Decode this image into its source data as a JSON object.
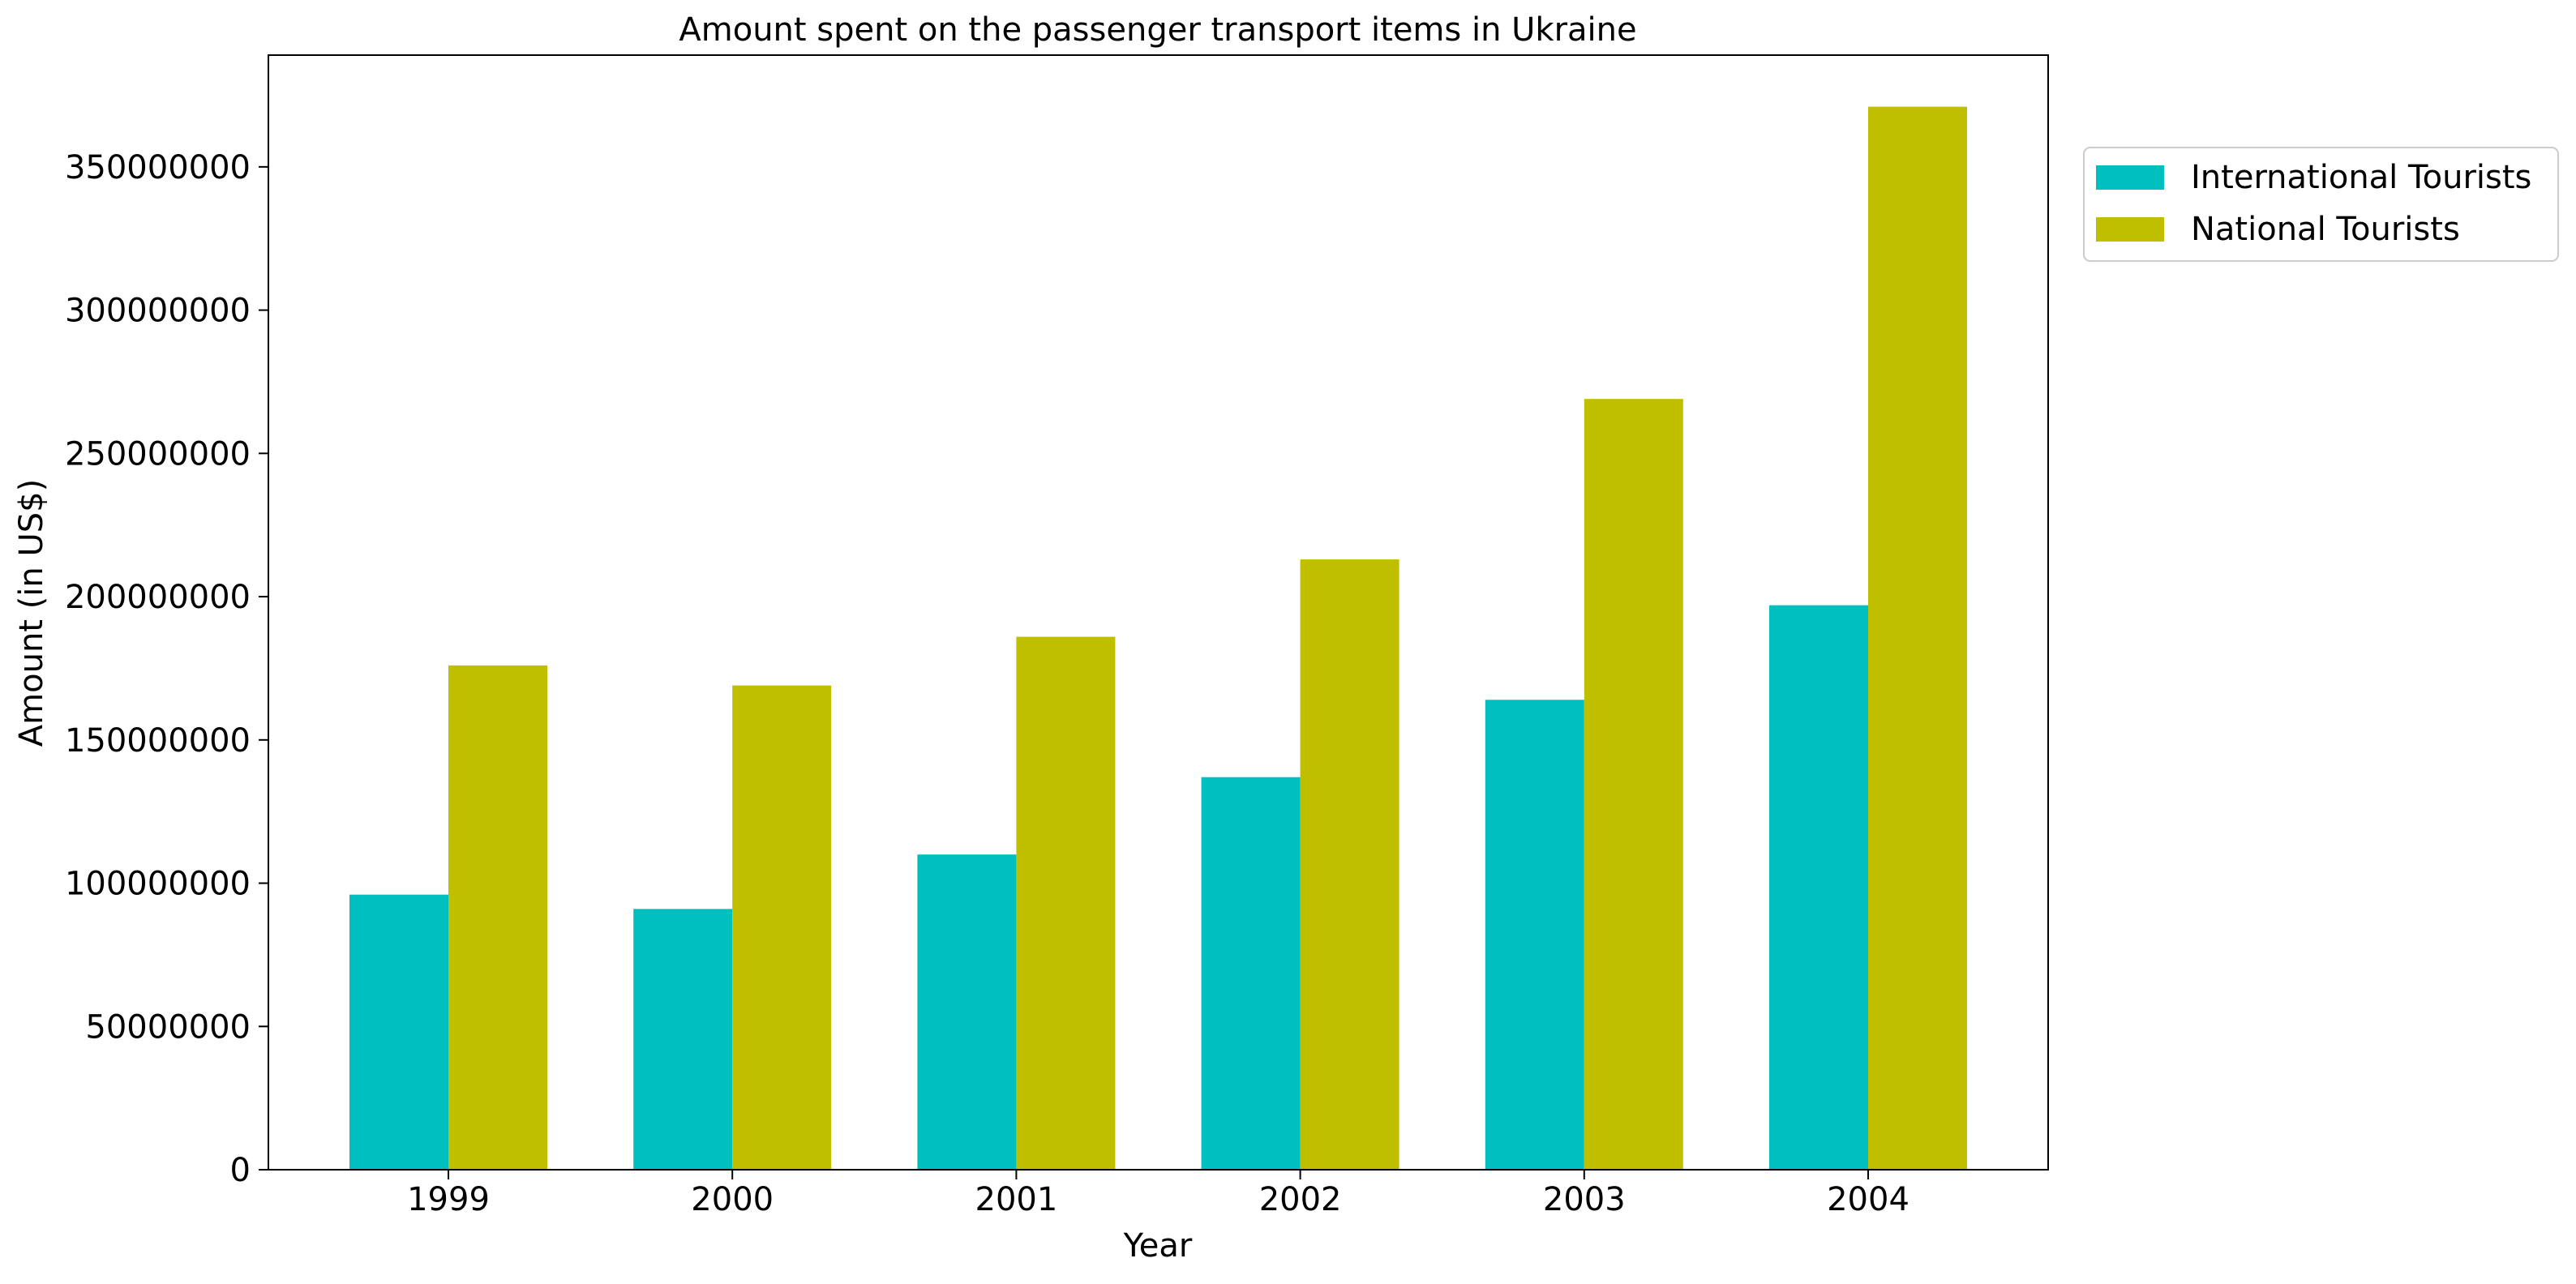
{
  "chart_data": {
    "type": "bar",
    "title": "Amount spent on the passenger transport items in Ukraine",
    "xlabel": "Year",
    "ylabel": "Amount (in US$)",
    "categories": [
      "1999",
      "2000",
      "2001",
      "2002",
      "2003",
      "2004"
    ],
    "series": [
      {
        "name": "International Tourists",
        "color": "#00bfbf",
        "values": [
          96000000,
          91000000,
          110000000,
          137000000,
          164000000,
          197000000
        ]
      },
      {
        "name": "National Tourists",
        "color": "#bfbf00",
        "values": [
          176000000,
          169000000,
          186000000,
          213000000,
          269000000,
          371000000
        ]
      }
    ],
    "ylim": [
      0,
      389000000
    ],
    "yticks": [
      0,
      50000000,
      100000000,
      150000000,
      200000000,
      250000000,
      300000000,
      350000000
    ],
    "ytick_labels": [
      "0",
      "50000000",
      "100000000",
      "150000000",
      "200000000",
      "250000000",
      "300000000",
      "350000000"
    ],
    "grid": false,
    "legend_position": "outside-top-right"
  }
}
